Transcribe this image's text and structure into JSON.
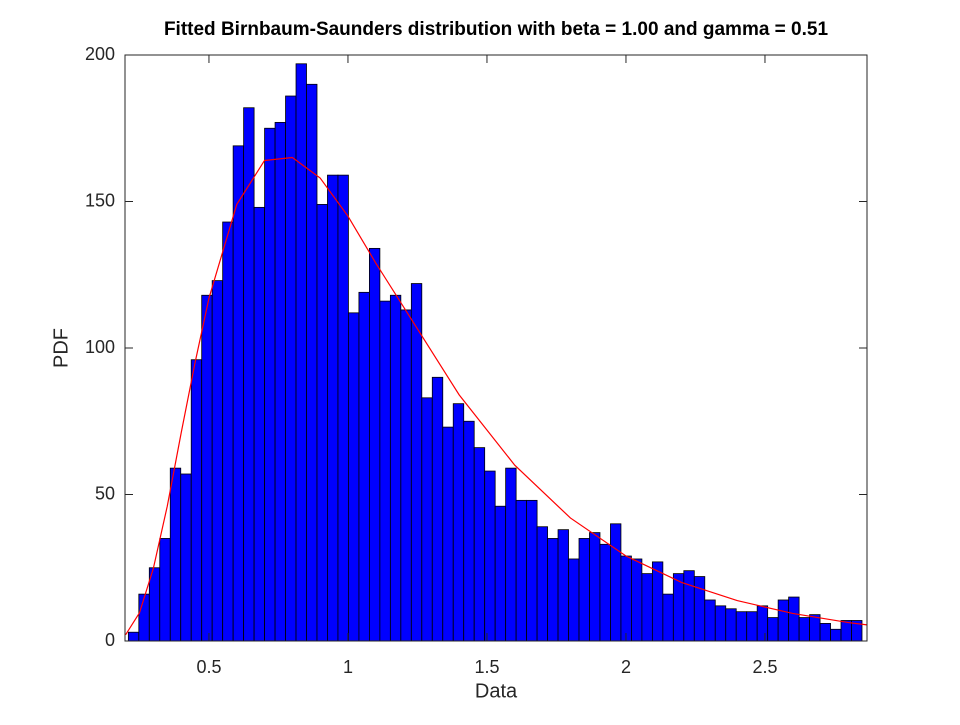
{
  "chart_data": {
    "type": "histogram",
    "title": "Fitted Birnbaum-Saunders distribution with beta = 1.00 and gamma = 0.51",
    "xlabel": "Data",
    "ylabel": "PDF",
    "bins": [
      0.21,
      0.2477,
      0.2854,
      0.3231,
      0.3608,
      0.3985,
      0.4362,
      0.4739,
      0.5116,
      0.5493,
      0.587,
      0.6247,
      0.6624,
      0.7001,
      0.7378,
      0.7755,
      0.8132,
      0.8509,
      0.8886,
      0.9263,
      0.964,
      1.0017,
      1.0394,
      1.0771,
      1.1148,
      1.1525,
      1.1902,
      1.2279,
      1.2656,
      1.3033,
      1.341,
      1.3787,
      1.4164,
      1.4541,
      1.4918,
      1.5295,
      1.5672,
      1.6049,
      1.6426,
      1.6803,
      1.718,
      1.7557,
      1.7934,
      1.8311,
      1.8688,
      1.9065,
      1.9442,
      1.9819,
      2.0196,
      2.0573,
      2.095,
      2.1327,
      2.1704,
      2.2081,
      2.2458,
      2.2835,
      2.3212,
      2.3589,
      2.3966,
      2.4343,
      2.472,
      2.5097,
      2.5474,
      2.5851,
      2.6228,
      2.6605,
      2.6982,
      2.7359,
      2.7736,
      2.8113,
      2.849
    ],
    "values": [
      3,
      16,
      25,
      35,
      59,
      57,
      96,
      118,
      123,
      143,
      169,
      182,
      148,
      175,
      177,
      186,
      197,
      190,
      149,
      159,
      159,
      112,
      119,
      134,
      116,
      118,
      113,
      122,
      83,
      90,
      73,
      81,
      75,
      66,
      58,
      46,
      59,
      48,
      48,
      39,
      35,
      38,
      28,
      35,
      37,
      33,
      40,
      29,
      28,
      23,
      27,
      16,
      23,
      24,
      22,
      14,
      12,
      11,
      10,
      10,
      12,
      8,
      14,
      15,
      8,
      9,
      6,
      4,
      7,
      7
    ],
    "color": "#0000ff",
    "curve": {
      "color": "#ff0000",
      "x": [
        0.2,
        0.25,
        0.3,
        0.35,
        0.4,
        0.45,
        0.5,
        0.6,
        0.7,
        0.8,
        0.9,
        1.0,
        1.1,
        1.2,
        1.4,
        1.6,
        1.8,
        2.0,
        2.2,
        2.4,
        2.6,
        2.8,
        2.867
      ],
      "values": [
        2.1,
        9.6,
        24.8,
        46,
        71,
        95,
        117,
        149,
        164,
        165,
        158,
        145,
        129,
        114,
        84,
        60,
        42,
        29,
        20,
        13.8,
        9.4,
        6.3,
        5.5
      ]
    },
    "xlim": [
      0.198,
      2.867
    ],
    "ylim": [
      0,
      200
    ],
    "xticks": [
      0.5,
      1,
      1.5,
      2,
      2.5
    ],
    "yticks": [
      0,
      50,
      100,
      150,
      200
    ]
  }
}
